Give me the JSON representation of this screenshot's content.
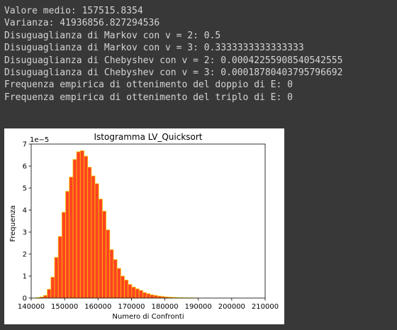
{
  "output": {
    "lines": [
      "Valore medio: 157515.8354",
      "Varianza: 41936856.827294536",
      "Disuguaglianza di Markov con v = 2: 0.5",
      "Disuguaglianza di Markov con v = 3: 0.3333333333333333",
      "Disuguaglianza di Chebyshev con v = 2: 0.00042255908540542555",
      "Disuguaglianza di Chebyshev con v = 3: 0.00018780403795796692",
      "Frequenza empirica di ottenimento del doppio di E: 0",
      "Frequenza empirica di ottenimento del triplo di E: 0"
    ]
  },
  "chart_data": {
    "type": "bar",
    "title": "Istogramma LV_Quicksort",
    "xlabel": "Numero di Confronti",
    "ylabel": "Frequenza",
    "y_offset_label": "1e−5",
    "xlim": [
      140000,
      210000
    ],
    "ylim": [
      0,
      7e-05
    ],
    "x_ticks": [
      140000,
      150000,
      160000,
      170000,
      180000,
      190000,
      200000,
      210000
    ],
    "x_tick_labels": [
      "140000",
      "150000",
      "160000",
      "170000",
      "180000",
      "190000",
      "200000",
      "210000"
    ],
    "y_ticks": [
      0,
      1e-05,
      2e-05,
      3e-05,
      4e-05,
      5e-05,
      6e-05,
      7e-05
    ],
    "y_tick_labels": [
      "0",
      "1",
      "2",
      "3",
      "4",
      "5",
      "6",
      "7"
    ],
    "bar_color": "#ff4422",
    "edge_color": "#f5c400",
    "bin_width": 1100,
    "bin_starts": [
      141500,
      142600,
      143700,
      144800,
      145900,
      147000,
      148100,
      149200,
      150300,
      151400,
      152500,
      153600,
      154700,
      155800,
      156900,
      158000,
      159100,
      160200,
      161300,
      162400,
      163500,
      164600,
      165700,
      166800,
      167900,
      169000,
      170100,
      171200,
      172300,
      173400,
      174500,
      175600,
      176700,
      177800,
      178900,
      180000,
      181100,
      182200,
      183300,
      184400,
      185500,
      186600,
      187700,
      188800
    ],
    "values": [
      2e-07,
      5e-07,
      1.2e-06,
      4e-06,
      9.5e-06,
      1.85e-05,
      2.8e-05,
      3.9e-05,
      4.85e-05,
      5.5e-05,
      6.3e-05,
      6.65e-05,
      6.7e-05,
      6.45e-05,
      5.95e-05,
      5.55e-05,
      5.2e-05,
      4.5e-05,
      3.95e-05,
      3.1e-05,
      2.2e-05,
      1.75e-05,
      1.35e-05,
      1e-05,
      8.2e-06,
      6.2e-06,
      5e-06,
      4.2e-06,
      3.5e-06,
      2.5e-06,
      2e-06,
      1.5e-06,
      1.2e-06,
      9e-07,
      7e-07,
      5e-07,
      4e-07,
      3e-07,
      2e-07,
      1.5e-07,
      1e-07,
      1e-07,
      5e-08,
      5e-08
    ]
  }
}
